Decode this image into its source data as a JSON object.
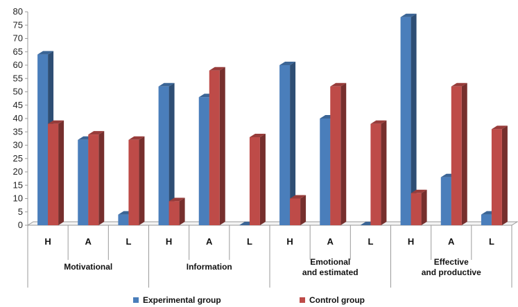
{
  "chart_data": {
    "type": "bar",
    "ylim": [
      0,
      80
    ],
    "yticks": [
      "0",
      "5",
      "10",
      "15",
      "20",
      "25",
      "30",
      "35",
      "40",
      "45",
      "50",
      "55",
      "60",
      "65",
      "70",
      "75",
      "80"
    ],
    "groups": [
      {
        "lines": [
          "Motivational"
        ],
        "categories": [
          "H",
          "A",
          "L"
        ]
      },
      {
        "lines": [
          "Information"
        ],
        "categories": [
          "H",
          "A",
          "L"
        ]
      },
      {
        "lines": [
          "Emotional",
          "and estimated"
        ],
        "categories": [
          "H",
          "A",
          "L"
        ]
      },
      {
        "lines": [
          "Effective",
          "and productive"
        ],
        "categories": [
          "H",
          "A",
          "L"
        ]
      }
    ],
    "series": [
      {
        "name": "Experimental group",
        "color": "#4A7EBB",
        "values": [
          64,
          32,
          4,
          52,
          48,
          0,
          60,
          40,
          0,
          78,
          18,
          4
        ]
      },
      {
        "name": "Control group",
        "color": "#BE4B48",
        "values": [
          38,
          34,
          32,
          9,
          58,
          33,
          10,
          52,
          38,
          12,
          52,
          36
        ]
      }
    ],
    "legend_position": "bottom"
  }
}
